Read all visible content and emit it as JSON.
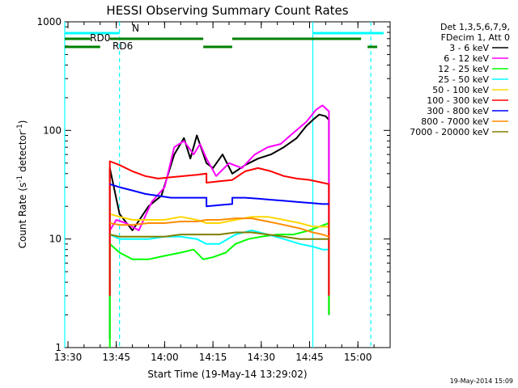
{
  "chart_data": {
    "type": "line",
    "title": "HESSI Observing Summary Count Rates",
    "xlabel": "Start Time (19-May-14 13:29:02)",
    "ylabel_main": "Count Rate (s",
    "ylabel_sup1": "-1",
    "ylabel_mid": " detector",
    "ylabel_sup2": "-1",
    "ylabel_end": ")",
    "xscale": "linear",
    "yscale": "log",
    "xlim": [
      "13:29",
      "15:10"
    ],
    "ylim": [
      1,
      1000
    ],
    "x_ticks": [
      "13:30",
      "13:45",
      "14:00",
      "14:15",
      "14:30",
      "14:45",
      "15:00"
    ],
    "y_ticks": [
      "1",
      "10",
      "100",
      "1000"
    ],
    "legend_header": [
      "Det 1,3,5,6,7,9,",
      "FDecim 1, Att 0"
    ],
    "legend_position": "right",
    "timestamp": "19-May-2014 15:09",
    "series": [
      {
        "name": "3 - 6 keV",
        "color": "#000000",
        "points": [
          [
            "13:43",
            1.2
          ],
          [
            "13:43",
            45
          ],
          [
            "13:46",
            17
          ],
          [
            "13:50",
            12
          ],
          [
            "13:55",
            20
          ],
          [
            "13:59",
            25
          ],
          [
            "14:03",
            60
          ],
          [
            "14:06",
            85
          ],
          [
            "14:08",
            55
          ],
          [
            "14:10",
            90
          ],
          [
            "14:13",
            50
          ],
          [
            "14:15",
            45
          ],
          [
            "14:18",
            60
          ],
          [
            "14:21",
            40
          ],
          [
            "14:25",
            48
          ],
          [
            "14:29",
            55
          ],
          [
            "14:33",
            60
          ],
          [
            "14:37",
            70
          ],
          [
            "14:41",
            85
          ],
          [
            "14:44",
            110
          ],
          [
            "14:46",
            125
          ],
          [
            "14:48",
            140
          ],
          [
            "14:50",
            135
          ],
          [
            "14:51",
            125
          ],
          [
            "14:51",
            2
          ]
        ]
      },
      {
        "name": "6 - 12 keV",
        "color": "#ff00ff",
        "points": [
          [
            "13:43",
            12
          ],
          [
            "13:45",
            15
          ],
          [
            "13:48",
            14
          ],
          [
            "13:52",
            12
          ],
          [
            "13:56",
            22
          ],
          [
            "14:00",
            30
          ],
          [
            "14:03",
            70
          ],
          [
            "14:06",
            80
          ],
          [
            "14:09",
            60
          ],
          [
            "14:11",
            75
          ],
          [
            "14:13",
            55
          ],
          [
            "14:16",
            38
          ],
          [
            "14:20",
            50
          ],
          [
            "14:24",
            45
          ],
          [
            "14:28",
            60
          ],
          [
            "14:32",
            70
          ],
          [
            "14:36",
            75
          ],
          [
            "14:40",
            95
          ],
          [
            "14:44",
            120
          ],
          [
            "14:47",
            155
          ],
          [
            "14:49",
            170
          ],
          [
            "14:51",
            150
          ],
          [
            "14:51",
            3
          ]
        ]
      },
      {
        "name": "12 - 25 keV",
        "color": "#00ff00",
        "points": [
          [
            "13:43",
            1
          ],
          [
            "13:43",
            9
          ],
          [
            "13:46",
            7.5
          ],
          [
            "13:50",
            6.5
          ],
          [
            "13:55",
            6.5
          ],
          [
            "14:00",
            7
          ],
          [
            "14:05",
            7.5
          ],
          [
            "14:09",
            8
          ],
          [
            "14:12",
            6.5
          ],
          [
            "14:15",
            6.8
          ],
          [
            "14:19",
            7.5
          ],
          [
            "14:22",
            9
          ],
          [
            "14:26",
            10
          ],
          [
            "14:30",
            10.5
          ],
          [
            "14:35",
            11
          ],
          [
            "14:40",
            11
          ],
          [
            "14:45",
            12
          ],
          [
            "14:48",
            13
          ],
          [
            "14:51",
            14
          ],
          [
            "14:51",
            2
          ]
        ]
      },
      {
        "name": "25 - 50 keV",
        "color": "#00ffff",
        "points": [
          [
            "13:43",
            11
          ],
          [
            "13:46",
            10
          ],
          [
            "13:50",
            10
          ],
          [
            "13:55",
            10
          ],
          [
            "14:00",
            10.5
          ],
          [
            "14:05",
            10.5
          ],
          [
            "14:10",
            10
          ],
          [
            "14:13",
            9
          ],
          [
            "14:17",
            9
          ],
          [
            "14:22",
            11
          ],
          [
            "14:27",
            12
          ],
          [
            "14:32",
            11
          ],
          [
            "14:37",
            10
          ],
          [
            "14:42",
            9
          ],
          [
            "14:46",
            8.5
          ],
          [
            "14:49",
            8
          ],
          [
            "14:51",
            8
          ]
        ]
      },
      {
        "name": "50 - 100 keV",
        "color": "#ffd700",
        "points": [
          [
            "13:43",
            17
          ],
          [
            "13:46",
            16
          ],
          [
            "13:50",
            15
          ],
          [
            "13:55",
            15
          ],
          [
            "14:00",
            15
          ],
          [
            "14:05",
            16
          ],
          [
            "14:10",
            15
          ],
          [
            "14:13",
            14
          ],
          [
            "14:17",
            14
          ],
          [
            "14:22",
            15
          ],
          [
            "14:27",
            16
          ],
          [
            "14:32",
            16
          ],
          [
            "14:37",
            15
          ],
          [
            "14:42",
            14
          ],
          [
            "14:46",
            13
          ],
          [
            "14:49",
            13
          ],
          [
            "14:51",
            13
          ]
        ]
      },
      {
        "name": "100 - 300 keV",
        "color": "#ff0000",
        "points": [
          [
            "13:43",
            3
          ],
          [
            "13:43",
            52
          ],
          [
            "13:46",
            48
          ],
          [
            "13:50",
            42
          ],
          [
            "13:54",
            38
          ],
          [
            "13:58",
            36
          ],
          [
            "14:02",
            37
          ],
          [
            "14:06",
            38
          ],
          [
            "14:10",
            39
          ],
          [
            "14:13",
            40
          ],
          [
            "14:13",
            33
          ],
          [
            "14:17",
            34
          ],
          [
            "14:21",
            35
          ],
          [
            "14:25",
            42
          ],
          [
            "14:29",
            45
          ],
          [
            "14:33",
            42
          ],
          [
            "14:37",
            38
          ],
          [
            "14:41",
            36
          ],
          [
            "14:45",
            35
          ],
          [
            "14:49",
            33
          ],
          [
            "14:51",
            32
          ],
          [
            "14:51",
            3
          ]
        ]
      },
      {
        "name": "300 - 800 keV",
        "color": "#0000ff",
        "points": [
          [
            "13:43",
            32
          ],
          [
            "13:46",
            30
          ],
          [
            "13:50",
            28
          ],
          [
            "13:54",
            26
          ],
          [
            "13:58",
            25
          ],
          [
            "14:02",
            24
          ],
          [
            "14:06",
            24
          ],
          [
            "14:10",
            24
          ],
          [
            "14:13",
            24
          ],
          [
            "14:13",
            20
          ],
          [
            "14:17",
            20.5
          ],
          [
            "14:21",
            21
          ],
          [
            "14:21",
            24
          ],
          [
            "14:25",
            24
          ],
          [
            "14:29",
            23.5
          ],
          [
            "14:33",
            23
          ],
          [
            "14:37",
            22.5
          ],
          [
            "14:41",
            22
          ],
          [
            "14:45",
            21.5
          ],
          [
            "14:49",
            21
          ],
          [
            "14:51",
            21
          ]
        ]
      },
      {
        "name": "800 - 7000 keV",
        "color": "#ff8c00",
        "points": [
          [
            "13:43",
            14
          ],
          [
            "13:46",
            13.5
          ],
          [
            "13:50",
            13.5
          ],
          [
            "13:55",
            14
          ],
          [
            "14:00",
            14
          ],
          [
            "14:05",
            14.5
          ],
          [
            "14:10",
            14.5
          ],
          [
            "14:13",
            15
          ],
          [
            "14:17",
            15
          ],
          [
            "14:22",
            15.5
          ],
          [
            "14:27",
            15.5
          ],
          [
            "14:32",
            14.5
          ],
          [
            "14:37",
            13.5
          ],
          [
            "14:42",
            12.5
          ],
          [
            "14:46",
            11.5
          ],
          [
            "14:49",
            11
          ],
          [
            "14:51",
            10.5
          ]
        ]
      },
      {
        "name": "7000 - 20000 keV",
        "color": "#808000",
        "points": [
          [
            "13:43",
            11
          ],
          [
            "13:46",
            10.5
          ],
          [
            "13:50",
            10.5
          ],
          [
            "13:55",
            10.5
          ],
          [
            "14:00",
            10.5
          ],
          [
            "14:05",
            11
          ],
          [
            "14:10",
            11
          ],
          [
            "14:13",
            11
          ],
          [
            "14:17",
            11
          ],
          [
            "14:22",
            11.5
          ],
          [
            "14:27",
            11.5
          ],
          [
            "14:32",
            11
          ],
          [
            "14:37",
            10.5
          ],
          [
            "14:42",
            10
          ],
          [
            "14:46",
            10
          ],
          [
            "14:49",
            10
          ],
          [
            "14:51",
            10
          ]
        ]
      }
    ],
    "vertical_markers": [
      {
        "x": "13:29",
        "style": "solid",
        "color": "#00ffff"
      },
      {
        "x": "13:46",
        "style": "dashed",
        "color": "#00ffff"
      },
      {
        "x": "14:46",
        "style": "solid",
        "color": "#00ffff"
      },
      {
        "x": "15:04",
        "style": "dashed",
        "color": "#00ffff"
      }
    ],
    "flag_bars": [
      {
        "label": "N",
        "color": "#00ffff",
        "row": 1,
        "segments": [
          [
            "13:29",
            "13:46"
          ],
          [
            "14:46",
            "15:08"
          ]
        ]
      },
      {
        "label": "RD0",
        "color": "#008000",
        "row": 2,
        "segments": [
          [
            "13:29",
            "13:37"
          ],
          [
            "13:43",
            "14:12"
          ],
          [
            "14:21",
            "15:01"
          ]
        ]
      },
      {
        "label": "RD6",
        "color": "#008000",
        "row": 3,
        "segments": [
          [
            "13:29",
            "13:40"
          ],
          [
            "14:12",
            "14:21"
          ],
          [
            "15:03",
            "15:06"
          ]
        ]
      }
    ]
  }
}
